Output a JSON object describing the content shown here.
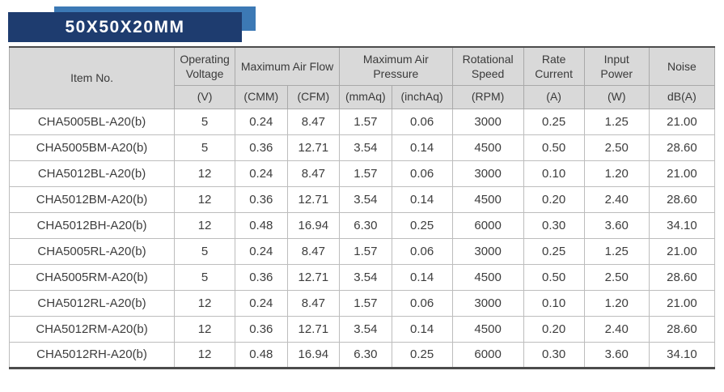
{
  "banner": {
    "title": "50X50X20MM"
  },
  "colors": {
    "banner_dark": "#1e3c6f",
    "banner_light": "#3c79b5",
    "header_bg": "#d9d9d9",
    "table_border_dark": "#4c4c4c",
    "grid_line": "#bdbdbd"
  },
  "table": {
    "header": {
      "item_no": "Item No.",
      "operating_voltage": "Operating Voltage",
      "max_air_flow": "Maximum Air Flow",
      "max_air_pressure": "Maximum Air Pressure",
      "rotational_speed": "Rotational Speed",
      "rate_current": "Rate Current",
      "input_power": "Input Power",
      "noise": "Noise",
      "units": {
        "voltage": "(V)",
        "cmm": "(CMM)",
        "cfm": "(CFM)",
        "mmaq": "(mmAq)",
        "inchaq": "(inchAq)",
        "rpm": "(RPM)",
        "current": "(A)",
        "power": "(W)",
        "noise": "dB(A)"
      }
    },
    "rows": [
      [
        "CHA5005BL-A20(b)",
        "5",
        "0.24",
        "8.47",
        "1.57",
        "0.06",
        "3000",
        "0.25",
        "1.25",
        "21.00"
      ],
      [
        "CHA5005BM-A20(b)",
        "5",
        "0.36",
        "12.71",
        "3.54",
        "0.14",
        "4500",
        "0.50",
        "2.50",
        "28.60"
      ],
      [
        "CHA5012BL-A20(b)",
        "12",
        "0.24",
        "8.47",
        "1.57",
        "0.06",
        "3000",
        "0.10",
        "1.20",
        "21.00"
      ],
      [
        "CHA5012BM-A20(b)",
        "12",
        "0.36",
        "12.71",
        "3.54",
        "0.14",
        "4500",
        "0.20",
        "2.40",
        "28.60"
      ],
      [
        "CHA5012BH-A20(b)",
        "12",
        "0.48",
        "16.94",
        "6.30",
        "0.25",
        "6000",
        "0.30",
        "3.60",
        "34.10"
      ],
      [
        "CHA5005RL-A20(b)",
        "5",
        "0.24",
        "8.47",
        "1.57",
        "0.06",
        "3000",
        "0.25",
        "1.25",
        "21.00"
      ],
      [
        "CHA5005RM-A20(b)",
        "5",
        "0.36",
        "12.71",
        "3.54",
        "0.14",
        "4500",
        "0.50",
        "2.50",
        "28.60"
      ],
      [
        "CHA5012RL-A20(b)",
        "12",
        "0.24",
        "8.47",
        "1.57",
        "0.06",
        "3000",
        "0.10",
        "1.20",
        "21.00"
      ],
      [
        "CHA5012RM-A20(b)",
        "12",
        "0.36",
        "12.71",
        "3.54",
        "0.14",
        "4500",
        "0.20",
        "2.40",
        "28.60"
      ],
      [
        "CHA5012RH-A20(b)",
        "12",
        "0.48",
        "16.94",
        "6.30",
        "0.25",
        "6000",
        "0.30",
        "3.60",
        "34.10"
      ]
    ]
  }
}
